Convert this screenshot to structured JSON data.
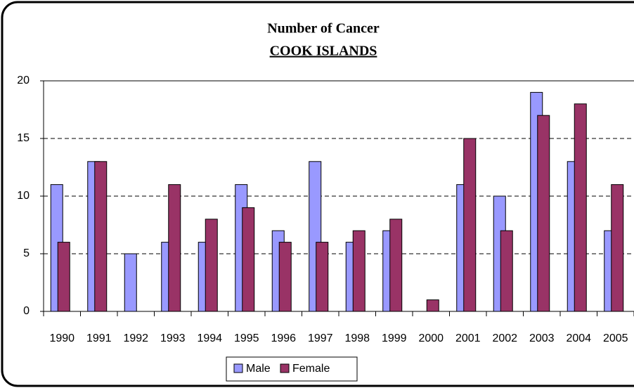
{
  "chart_data": {
    "type": "bar",
    "title": "Number of Cancer",
    "subtitle": "COOK ISLANDS",
    "categories": [
      "1990",
      "1991",
      "1992",
      "1993",
      "1994",
      "1995",
      "1996",
      "1997",
      "1998",
      "1999",
      "2000",
      "2001",
      "2002",
      "2003",
      "2004",
      "2005"
    ],
    "series": [
      {
        "name": "Male",
        "color": "#9999ff",
        "values": [
          11,
          13,
          5,
          6,
          6,
          11,
          7,
          13,
          6,
          7,
          0,
          11,
          10,
          19,
          13,
          7
        ]
      },
      {
        "name": "Female",
        "color": "#993366",
        "values": [
          6,
          13,
          0,
          11,
          8,
          9,
          6,
          6,
          7,
          8,
          1,
          15,
          7,
          17,
          18,
          11
        ]
      }
    ],
    "ylim": [
      0,
      20
    ],
    "yticks": [
      0,
      5,
      10,
      15,
      20
    ],
    "grid": true,
    "legend": "bottom"
  }
}
